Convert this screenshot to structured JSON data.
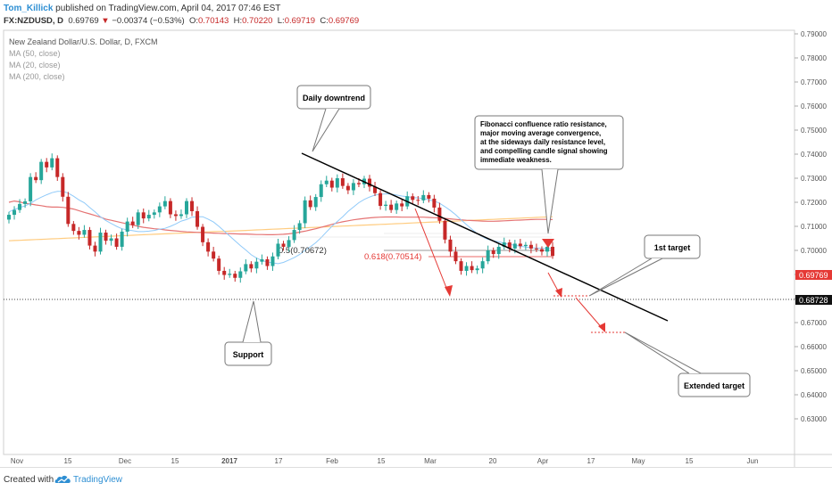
{
  "header": {
    "author": "Tom_Killick",
    "published_text": "published on TradingView.com, April 04, 2017 07:46 EST",
    "symbol": "FX:NZDUSD, D",
    "last": "0.69769",
    "change": "−0.00374 (−0.53%)",
    "open_label": "O:",
    "open": "0.70143",
    "high_label": "H:",
    "high": "0.70220",
    "low_label": "L:",
    "low": "0.69719",
    "close_label": "C:",
    "close": "0.69769"
  },
  "legend": {
    "title": "New Zealand Dollar/U.S. Dollar, D, FXCM",
    "ma50": "MA (50, close)",
    "ma20": "MA (20, close)",
    "ma200": "MA (200, close)"
  },
  "annotations": {
    "daily_downtrend": "Daily downtrend",
    "fib_note": [
      "Fibonacci confluence ratio resistance,",
      "major moving average convergence,",
      "at the sideways daily resistance level,",
      "and compelling candle signal showing",
      "immediate weakness."
    ],
    "first_target": "1st target",
    "support": "Support",
    "extended_target": "Extended target",
    "fib_05": "0.5(0.70672)",
    "fib_0618": "0.618(0.70514)"
  },
  "badges": {
    "price_last": "0.69769",
    "price_line": "0.68728"
  },
  "colors": {
    "up": "#26a69a",
    "down": "#c62828",
    "ma50": "#e57373",
    "ma20": "#90caf9",
    "ma200": "#ffcc80",
    "trendline": "#000000",
    "arrow": "#e53935",
    "author": "#2e8fd3"
  },
  "footer": {
    "created": "Created with",
    "brand": "TradingView"
  },
  "chart_data": {
    "type": "candlestick",
    "title": "New Zealand Dollar/U.S. Dollar, D, FXCM",
    "y_axis": {
      "ticks": [
        0.79,
        0.78,
        0.77,
        0.76,
        0.75,
        0.74,
        0.73,
        0.72,
        0.71,
        0.7,
        0.69,
        0.68,
        0.67,
        0.66,
        0.65,
        0.64,
        0.63
      ],
      "ylim": [
        0.625,
        0.797
      ],
      "side": "right"
    },
    "x_axis": {
      "labels": [
        "Nov",
        "15",
        "Dec",
        "15",
        "2017",
        "17",
        "Feb",
        "15",
        "Mar",
        "20",
        "Apr",
        "17",
        "May",
        "15",
        "Jun"
      ]
    },
    "horizontal_line": 0.68728,
    "fib_levels": [
      {
        "label": "0.5",
        "value": 0.70672
      },
      {
        "label": "0.618",
        "value": 0.70514
      }
    ],
    "closes": [
      0.7148,
      0.7168,
      0.7193,
      0.7204,
      0.7305,
      0.7292,
      0.7368,
      0.7345,
      0.7383,
      0.7305,
      0.7223,
      0.711,
      0.7081,
      0.7065,
      0.7085,
      0.702,
      0.6995,
      0.7074,
      0.704,
      0.705,
      0.7015,
      0.7078,
      0.712,
      0.7105,
      0.7158,
      0.7133,
      0.7148,
      0.7158,
      0.7183,
      0.7205,
      0.715,
      0.7143,
      0.715,
      0.7205,
      0.7163,
      0.7098,
      0.7034,
      0.6995,
      0.6966,
      0.6915,
      0.6898,
      0.6903,
      0.6886,
      0.6913,
      0.6943,
      0.6925,
      0.6953,
      0.6963,
      0.6935,
      0.6975,
      0.7028,
      0.7015,
      0.7043,
      0.7085,
      0.7113,
      0.7208,
      0.718,
      0.7222,
      0.7275,
      0.729,
      0.7261,
      0.73,
      0.7268,
      0.725,
      0.728,
      0.7275,
      0.7298,
      0.7265,
      0.7238,
      0.7185,
      0.719,
      0.7168,
      0.7195,
      0.7183,
      0.7225,
      0.721,
      0.7208,
      0.723,
      0.7215,
      0.7178,
      0.7123,
      0.7045,
      0.6995,
      0.6955,
      0.6915,
      0.6935,
      0.6918,
      0.6925,
      0.6955,
      0.7,
      0.6985,
      0.7015,
      0.7033,
      0.7008,
      0.7028,
      0.7018,
      0.7023,
      0.7008,
      0.7005,
      0.6995,
      0.7015,
      0.6977
    ],
    "ma50": [
      0.72,
      0.7205,
      0.7202,
      0.7195,
      0.7193,
      0.7189,
      0.7186,
      0.7182,
      0.718,
      0.718,
      0.7179,
      0.7176,
      0.7172,
      0.7165,
      0.7158,
      0.7152,
      0.7145,
      0.7138,
      0.713,
      0.7125,
      0.712,
      0.7115,
      0.711,
      0.7105,
      0.71,
      0.7096,
      0.7093,
      0.709,
      0.7088,
      0.7085,
      0.7083,
      0.7081,
      0.7079,
      0.7077,
      0.7076,
      0.7075,
      0.7074,
      0.7073,
      0.7072,
      0.7071,
      0.707,
      0.707,
      0.7069,
      0.7068,
      0.7068,
      0.7067,
      0.7066,
      0.7066,
      0.7065,
      0.7065,
      0.7066,
      0.7067,
      0.7069,
      0.7072,
      0.7076,
      0.708,
      0.7085,
      0.709,
      0.7096,
      0.7102,
      0.7108,
      0.7114,
      0.7119,
      0.7123,
      0.7127,
      0.713,
      0.7133,
      0.7135,
      0.7137,
      0.7138,
      0.7139,
      0.7139,
      0.7139,
      0.7138,
      0.7138,
      0.7138,
      0.7138,
      0.7138,
      0.7137,
      0.7136,
      0.7135,
      0.7133,
      0.7131,
      0.7129,
      0.7127,
      0.7125,
      0.7124,
      0.7123,
      0.7122,
      0.7121,
      0.7121,
      0.7122,
      0.7123,
      0.7124,
      0.7125,
      0.7126,
      0.7127,
      0.7128,
      0.7129,
      0.7129,
      0.7129,
      0.7128
    ],
    "ma20": [
      0.716,
      0.717,
      0.7178,
      0.7185,
      0.7195,
      0.721,
      0.7221,
      0.7231,
      0.724,
      0.7245,
      0.7245,
      0.7238,
      0.7225,
      0.721,
      0.7198,
      0.7178,
      0.716,
      0.714,
      0.7124,
      0.7112,
      0.71,
      0.709,
      0.7085,
      0.7082,
      0.7078,
      0.7078,
      0.708,
      0.7083,
      0.7088,
      0.7092,
      0.71,
      0.711,
      0.7122,
      0.7128,
      0.7138,
      0.714,
      0.714,
      0.713,
      0.7118,
      0.71,
      0.708,
      0.706,
      0.704,
      0.702,
      0.7002,
      0.6982,
      0.6968,
      0.6958,
      0.6952,
      0.6948,
      0.6945,
      0.695,
      0.696,
      0.697,
      0.6983,
      0.7,
      0.7015,
      0.7032,
      0.7053,
      0.7077,
      0.71,
      0.712,
      0.714,
      0.7162,
      0.718,
      0.7198,
      0.7212,
      0.7222,
      0.723,
      0.7233,
      0.7235,
      0.7234,
      0.723,
      0.7226,
      0.7223,
      0.722,
      0.7218,
      0.7216,
      0.721,
      0.7205,
      0.7196,
      0.7182,
      0.7166,
      0.7148,
      0.7127,
      0.7107,
      0.7088,
      0.707,
      0.7056,
      0.7046,
      0.704,
      0.7036,
      0.703,
      0.7025,
      0.7021,
      0.7017,
      0.7014,
      0.7011,
      0.701,
      0.7009,
      0.7009,
      0.7008
    ],
    "ma200": [
      0.704,
      0.7041,
      0.7042,
      0.7043,
      0.7044,
      0.7045,
      0.7046,
      0.7047,
      0.7048,
      0.7049,
      0.705,
      0.7051,
      0.7052,
      0.7053,
      0.7054,
      0.7055,
      0.7056,
      0.7057,
      0.7058,
      0.7059,
      0.706,
      0.7061,
      0.7062,
      0.7063,
      0.7064,
      0.7065,
      0.7066,
      0.7067,
      0.7068,
      0.7069,
      0.707,
      0.7071,
      0.7072,
      0.7073,
      0.7074,
      0.7075,
      0.7076,
      0.7077,
      0.7078,
      0.7079,
      0.7079,
      0.708,
      0.7081,
      0.7082,
      0.7083,
      0.7084,
      0.7085,
      0.7086,
      0.7087,
      0.7088,
      0.7089,
      0.709,
      0.7091,
      0.7092,
      0.7093,
      0.7094,
      0.7095,
      0.7096,
      0.7097,
      0.7098,
      0.7099,
      0.71,
      0.7101,
      0.7102,
      0.7103,
      0.7104,
      0.7105,
      0.7106,
      0.7107,
      0.7108,
      0.7109,
      0.711,
      0.7111,
      0.7112,
      0.7113,
      0.7114,
      0.7115,
      0.7116,
      0.7117,
      0.7118,
      0.7119,
      0.712,
      0.7121,
      0.7122,
      0.7123,
      0.7124,
      0.7125,
      0.7126,
      0.7127,
      0.7128,
      0.7129,
      0.713,
      0.7131,
      0.7132,
      0.7133,
      0.7134,
      0.7135,
      0.7136,
      0.7137,
      0.7138,
      0.7139,
      0.714
    ]
  }
}
